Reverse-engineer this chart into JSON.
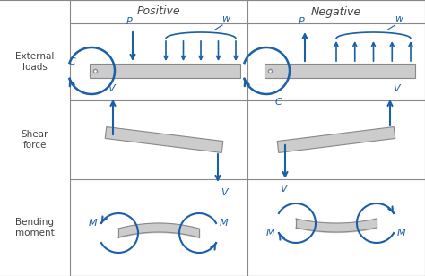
{
  "col_headers": [
    "Positive",
    "Negative"
  ],
  "row_headers": [
    "External\nloads",
    "Shear\nforce",
    "Bending\nmoment"
  ],
  "grid_color": "#888888",
  "beam_color": "#cccccc",
  "beam_edge_color": "#888888",
  "arrow_color": "#1a5fa8",
  "text_color": "#444444",
  "bg_color": "#ffffff"
}
